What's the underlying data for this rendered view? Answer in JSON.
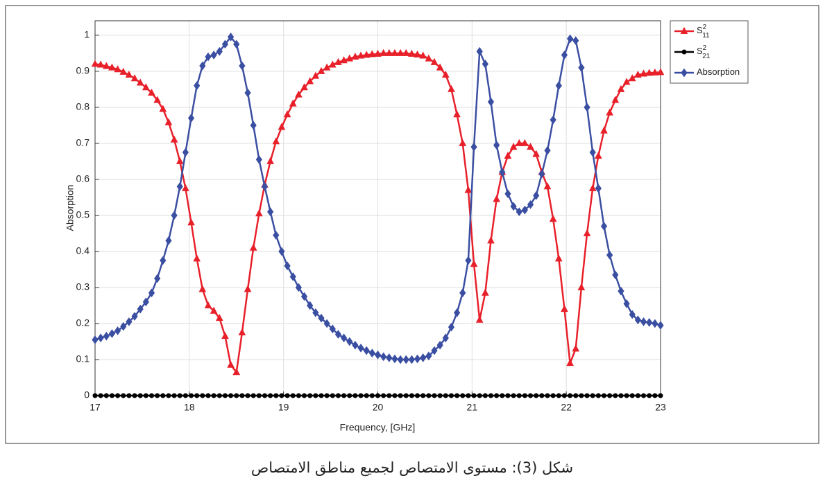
{
  "chart_data": {
    "type": "line",
    "xlabel": "Frequency, [GHz]",
    "ylabel": "Absorption",
    "caption": "شكل (3): مستوى الامتصاص لجميع مناطق الامتصاص",
    "x": [
      17,
      17.06,
      17.12,
      17.18,
      17.24,
      17.3,
      17.36,
      17.42,
      17.48,
      17.54,
      17.6,
      17.66,
      17.72,
      17.78,
      17.84,
      17.9,
      17.96,
      18.02,
      18.08,
      18.14,
      18.2,
      18.26,
      18.32,
      18.38,
      18.44,
      18.5,
      18.56,
      18.62,
      18.68,
      18.74,
      18.8,
      18.86,
      18.92,
      18.98,
      19.04,
      19.1,
      19.16,
      19.22,
      19.28,
      19.34,
      19.4,
      19.46,
      19.52,
      19.58,
      19.64,
      19.7,
      19.76,
      19.82,
      19.88,
      19.94,
      20,
      20.06,
      20.12,
      20.18,
      20.24,
      20.3,
      20.36,
      20.42,
      20.48,
      20.54,
      20.6,
      20.66,
      20.72,
      20.78,
      20.84,
      20.9,
      20.96,
      21.02,
      21.08,
      21.14,
      21.2,
      21.26,
      21.32,
      21.38,
      21.44,
      21.5,
      21.56,
      21.62,
      21.68,
      21.74,
      21.8,
      21.86,
      21.92,
      21.98,
      22.04,
      22.1,
      22.16,
      22.22,
      22.28,
      22.34,
      22.4,
      22.46,
      22.52,
      22.58,
      22.64,
      22.7,
      22.76,
      22.82,
      22.88,
      22.94,
      23
    ],
    "series": [
      {
        "name": "S",
        "name_sub": "11",
        "name_sup": "2",
        "color": "#e8202a",
        "marker": "triangle",
        "values": [
          0.92,
          0.918,
          0.914,
          0.91,
          0.905,
          0.898,
          0.89,
          0.88,
          0.868,
          0.855,
          0.84,
          0.82,
          0.795,
          0.758,
          0.71,
          0.65,
          0.575,
          0.48,
          0.38,
          0.295,
          0.25,
          0.235,
          0.215,
          0.165,
          0.085,
          0.065,
          0.175,
          0.295,
          0.41,
          0.505,
          0.585,
          0.65,
          0.705,
          0.745,
          0.78,
          0.81,
          0.835,
          0.855,
          0.872,
          0.887,
          0.9,
          0.91,
          0.918,
          0.925,
          0.93,
          0.935,
          0.94,
          0.943,
          0.945,
          0.947,
          0.948,
          0.95,
          0.95,
          0.95,
          0.95,
          0.95,
          0.948,
          0.946,
          0.943,
          0.935,
          0.925,
          0.91,
          0.89,
          0.85,
          0.78,
          0.7,
          0.57,
          0.365,
          0.21,
          0.285,
          0.43,
          0.545,
          0.62,
          0.665,
          0.69,
          0.7,
          0.7,
          0.69,
          0.67,
          0.62,
          0.58,
          0.49,
          0.38,
          0.24,
          0.09,
          0.13,
          0.3,
          0.45,
          0.575,
          0.665,
          0.735,
          0.785,
          0.82,
          0.85,
          0.87,
          0.88,
          0.89,
          0.893,
          0.895,
          0.896,
          0.897
        ]
      },
      {
        "name": "S",
        "name_sub": "21",
        "name_sup": "2",
        "color": "#000000",
        "marker": "circle",
        "values": [
          0,
          0,
          0,
          0,
          0,
          0,
          0,
          0,
          0,
          0,
          0,
          0,
          0,
          0,
          0,
          0,
          0,
          0,
          0,
          0,
          0,
          0,
          0,
          0,
          0,
          0,
          0,
          0,
          0,
          0,
          0,
          0,
          0,
          0,
          0,
          0,
          0,
          0,
          0,
          0,
          0,
          0,
          0,
          0,
          0,
          0,
          0,
          0,
          0,
          0,
          0,
          0,
          0,
          0,
          0,
          0,
          0,
          0,
          0,
          0,
          0,
          0,
          0,
          0,
          0,
          0,
          0,
          0,
          0,
          0,
          0,
          0,
          0,
          0,
          0,
          0,
          0,
          0,
          0,
          0,
          0,
          0,
          0,
          0,
          0,
          0,
          0,
          0,
          0,
          0,
          0,
          0,
          0,
          0,
          0,
          0,
          0,
          0,
          0,
          0,
          0
        ]
      },
      {
        "name": "Absorption",
        "color": "#3b4fa2",
        "marker": "diamond",
        "values": [
          0.155,
          0.16,
          0.165,
          0.172,
          0.18,
          0.192,
          0.205,
          0.22,
          0.24,
          0.26,
          0.285,
          0.325,
          0.375,
          0.43,
          0.5,
          0.58,
          0.675,
          0.77,
          0.86,
          0.915,
          0.94,
          0.945,
          0.955,
          0.975,
          0.995,
          0.975,
          0.915,
          0.84,
          0.75,
          0.655,
          0.58,
          0.51,
          0.445,
          0.4,
          0.36,
          0.33,
          0.3,
          0.275,
          0.25,
          0.23,
          0.215,
          0.2,
          0.185,
          0.17,
          0.16,
          0.15,
          0.14,
          0.132,
          0.125,
          0.118,
          0.113,
          0.108,
          0.105,
          0.102,
          0.1,
          0.1,
          0.1,
          0.102,
          0.105,
          0.11,
          0.125,
          0.14,
          0.16,
          0.19,
          0.23,
          0.285,
          0.375,
          0.69,
          0.955,
          0.92,
          0.815,
          0.695,
          0.62,
          0.56,
          0.525,
          0.51,
          0.515,
          0.53,
          0.555,
          0.615,
          0.68,
          0.765,
          0.86,
          0.945,
          0.99,
          0.985,
          0.91,
          0.8,
          0.675,
          0.575,
          0.47,
          0.39,
          0.335,
          0.29,
          0.255,
          0.225,
          0.21,
          0.205,
          0.203,
          0.2,
          0.195
        ]
      }
    ],
    "xlim": [
      17,
      23
    ],
    "xticks": [
      17,
      18,
      19,
      20,
      21,
      22,
      23
    ],
    "ylim": [
      0,
      1.04
    ],
    "yticks": [
      0,
      0.1,
      0.2,
      0.3,
      0.4,
      0.5,
      0.6,
      0.7,
      0.8,
      0.9,
      1
    ],
    "grid": true,
    "legend": "outside-upper-right"
  }
}
